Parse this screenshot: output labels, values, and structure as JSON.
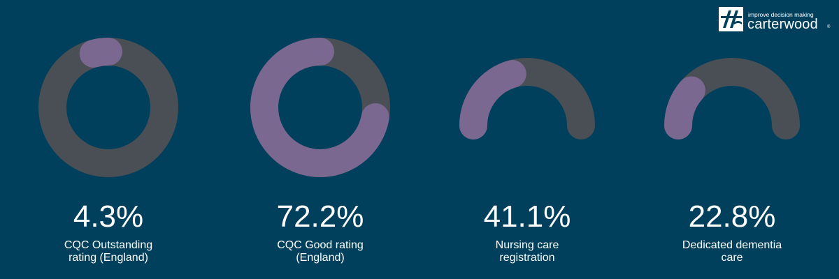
{
  "brand": {
    "tagline": "improve decision making",
    "name": "carterwood",
    "trademark": "®"
  },
  "colors": {
    "background": "#00405c",
    "track": "#4a4f55",
    "value": "#7b6891",
    "text": "#ffffff"
  },
  "chart_data": [
    {
      "type": "donut",
      "value": 4.3,
      "label": "4.3%",
      "caption": [
        "CQC Outstanding",
        "rating (England)"
      ]
    },
    {
      "type": "donut",
      "value": 72.2,
      "label": "72.2%",
      "caption": [
        "CQC Good rating",
        "(England)"
      ]
    },
    {
      "type": "semi-donut",
      "value": 41.1,
      "label": "41.1%",
      "caption": [
        "Nursing care",
        "registration"
      ]
    },
    {
      "type": "semi-donut",
      "value": 22.8,
      "label": "22.8%",
      "caption": [
        "Dedicated dementia",
        "care"
      ]
    }
  ]
}
